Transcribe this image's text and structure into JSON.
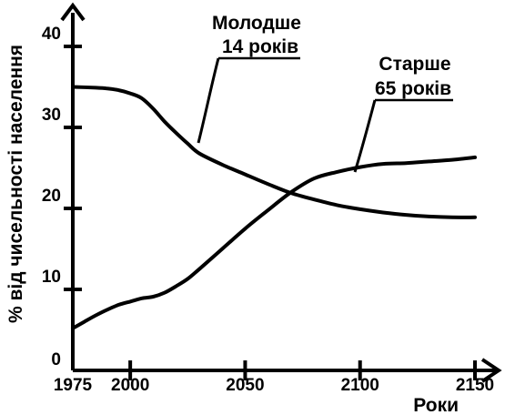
{
  "chart_data": {
    "type": "line",
    "ylabel": "% від чисельності населення",
    "xlabel": "Роки",
    "xlim": [
      1975,
      2150
    ],
    "ylim": [
      0,
      40
    ],
    "x_ticks": [
      1975,
      2000,
      2050,
      2100,
      2150
    ],
    "y_ticks": [
      0,
      10,
      20,
      30,
      40
    ],
    "grid": false,
    "series": [
      {
        "name_lines": [
          "Молодше",
          "14 років"
        ],
        "x": [
          1975,
          1985,
          1990,
          1995,
          2000,
          2005,
          2010,
          2015,
          2020,
          2025,
          2030,
          2040,
          2050,
          2060,
          2070,
          2080,
          2090,
          2100,
          2110,
          2120,
          2130,
          2140,
          2150
        ],
        "y": [
          35,
          34.9,
          34.8,
          34.6,
          34.2,
          33.6,
          32.3,
          30.7,
          29.3,
          28.0,
          26.8,
          25.4,
          24.2,
          23.0,
          21.9,
          21.1,
          20.4,
          19.9,
          19.5,
          19.2,
          19.0,
          18.9,
          18.9
        ]
      },
      {
        "name_lines": [
          "Старше",
          "65 років"
        ],
        "x": [
          1975,
          1980,
          1985,
          1990,
          1995,
          2000,
          2005,
          2010,
          2015,
          2020,
          2025,
          2030,
          2040,
          2050,
          2060,
          2070,
          2080,
          2090,
          2100,
          2110,
          2120,
          2130,
          2140,
          2150
        ],
        "y": [
          5.2,
          6.0,
          6.8,
          7.5,
          8.1,
          8.5,
          8.9,
          9.1,
          9.6,
          10.4,
          11.3,
          12.5,
          15.0,
          17.5,
          19.8,
          22.0,
          23.7,
          24.5,
          25.1,
          25.5,
          25.6,
          25.8,
          26.0,
          26.3
        ]
      }
    ]
  }
}
